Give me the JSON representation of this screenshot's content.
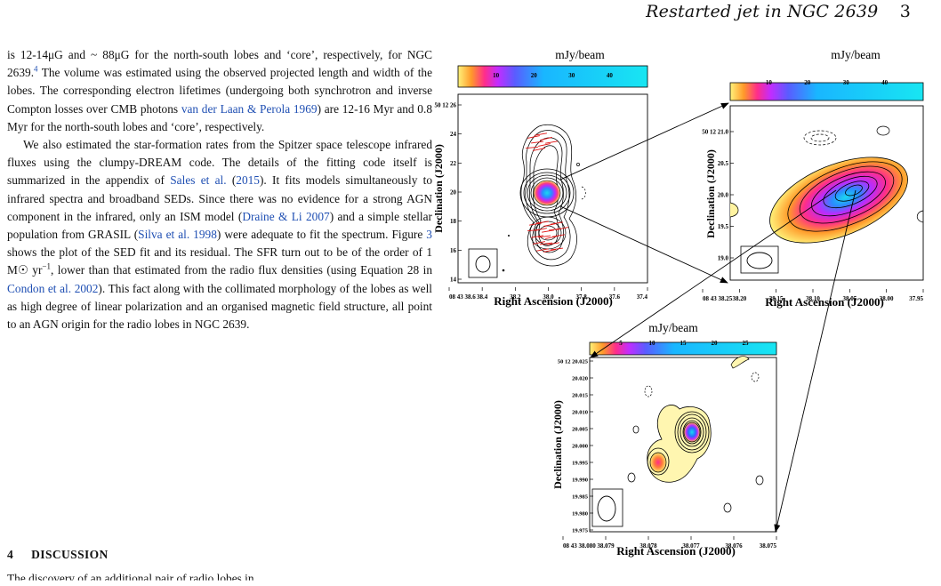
{
  "header": {
    "running_title": "Restarted jet in NGC 2639",
    "page_number": "3"
  },
  "body": {
    "para1": [
      {
        "t": "is 12-14μG and ~ 88μG for the north-south lobes and ‘core’, respectively, for NGC 2639."
      },
      {
        "t": "4",
        "sup": true,
        "link": true
      },
      {
        "t": " The volume was estimated using the observed projected length and width of the lobes. The corresponding electron lifetimes (undergoing both synchrotron and inverse Compton losses over CMB photons "
      },
      {
        "t": "van der Laan & Perola 1969",
        "link": true
      },
      {
        "t": ") are 12-16 Myr and 0.8 Myr for the north-south lobes and ‘core’, respectively."
      }
    ],
    "para2": [
      {
        "t": "We also estimated the star-formation rates from the Spitzer space telescope infrared fluxes using the clumpy-DREAM code. The details of the fitting code itself is summarized in the appendix of "
      },
      {
        "t": "Sales et al.",
        "link": true
      },
      {
        "t": " ("
      },
      {
        "t": "2015",
        "link": true
      },
      {
        "t": "). It fits models simultaneously to infrared spectra and broadband SEDs. Since there was no evidence for a strong AGN component in the infrared, only an ISM model ("
      },
      {
        "t": "Draine & Li 2007",
        "link": true
      },
      {
        "t": ") and a simple stellar population from GRASIL ("
      },
      {
        "t": "Silva et al. 1998",
        "link": true
      },
      {
        "t": ") were adequate to fit the spectrum. Figure "
      },
      {
        "t": "3",
        "link": true
      },
      {
        "t": " shows the plot of the SED fit and its residual. The SFR turn out to be of the order of 1 M☉ yr"
      },
      {
        "t": "−1",
        "sup": true
      },
      {
        "t": ", lower than that estimated from the radio flux densities (using Equation 28 in "
      },
      {
        "t": "Condon et al. 2002",
        "link": true
      },
      {
        "t": "). This fact along with the collimated morphology of the lobes as well as high degree of linear polarization and an organised magnetic field structure, all point to an AGN origin for the radio lobes in NGC 2639."
      }
    ],
    "section_number": "4",
    "section_title": "DISCUSSION",
    "next_line": "The discovery of an additional pair of radio lobes in"
  },
  "figure": {
    "panel1": {
      "colorbar_label": "mJy/beam",
      "colorbar_ticks": [
        "10",
        "20",
        "30",
        "40"
      ],
      "y_ticks": [
        "50 12 26",
        "24",
        "22",
        "20",
        "18",
        "16",
        "14"
      ],
      "x_ticks": [
        "08 43 38.6",
        "38.4",
        "38.2",
        "38.0",
        "37.8",
        "37.6",
        "37.4"
      ],
      "xlabel": "Right Ascension (J2000)",
      "ylabel": "Declination (J2000)"
    },
    "panel2": {
      "colorbar_label": "mJy/beam",
      "colorbar_ticks": [
        "10",
        "20",
        "30",
        "40"
      ],
      "y_ticks": [
        "50 12 21.0",
        "20.5",
        "20.0",
        "19.5",
        "19.0"
      ],
      "x_ticks": [
        "08 43 38.25",
        "38.20",
        "38.15",
        "38.10",
        "38.05",
        "38.00",
        "37.95"
      ],
      "xlabel": "Right Ascension (J2000)",
      "ylabel": "Declination (J2000)"
    },
    "panel3": {
      "colorbar_label": "mJy/beam",
      "colorbar_ticks": [
        "5",
        "10",
        "15",
        "20",
        "25"
      ],
      "y_ticks": [
        "50 12 20.025",
        "20.020",
        "20.015",
        "20.010",
        "20.005",
        "20.000",
        "19.995",
        "19.990",
        "19.985",
        "19.980",
        "19.975"
      ],
      "x_ticks": [
        "08 43 38.080",
        "38.079",
        "38.078",
        "38.077",
        "38.076",
        "38.075"
      ],
      "xlabel": "Right Ascension (J2000)",
      "ylabel": "Declination (J2000)"
    },
    "colors": {
      "link": "#1f4fb3",
      "red_vectors": "#e01010"
    }
  }
}
